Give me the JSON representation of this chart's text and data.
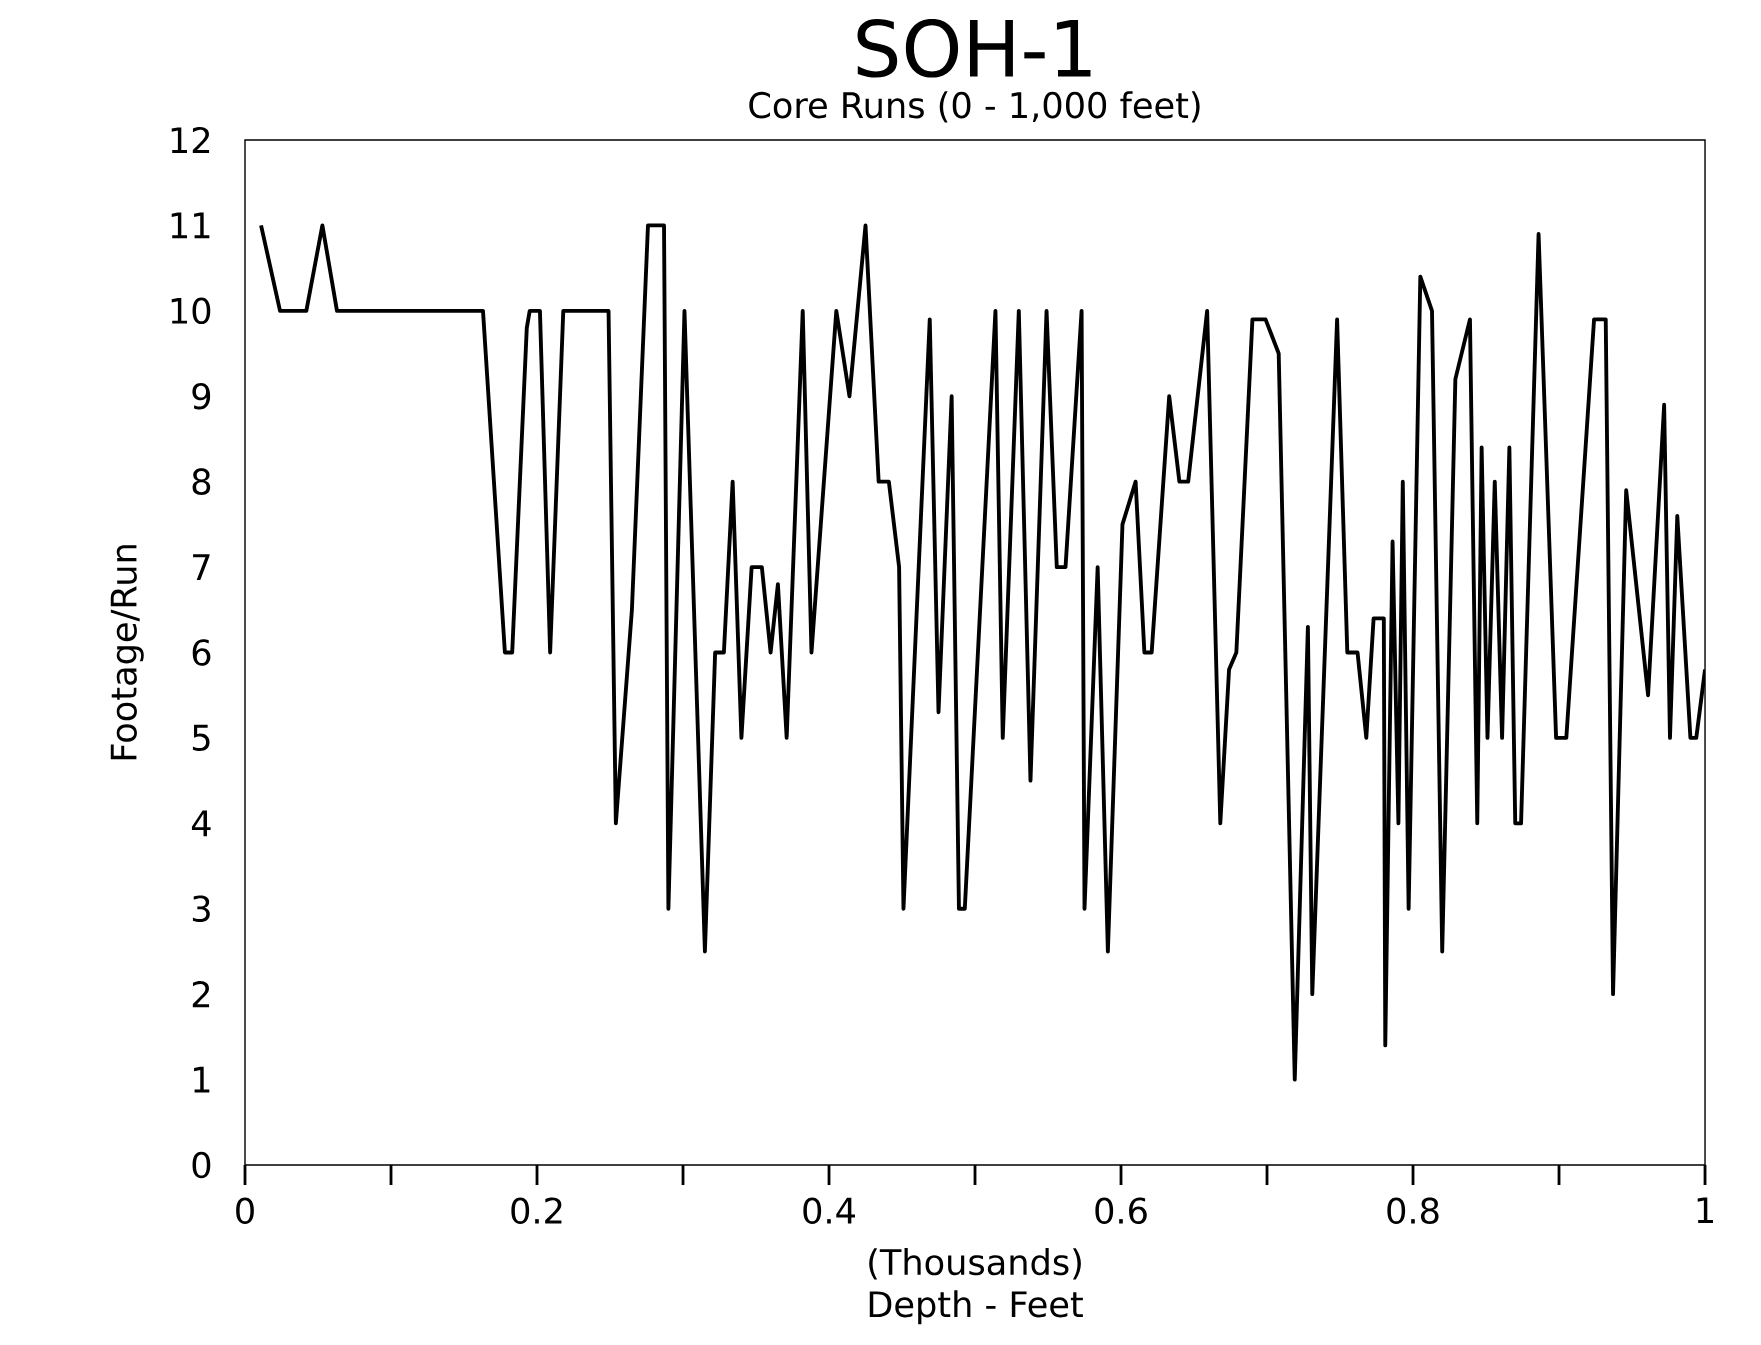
{
  "chart_data": {
    "type": "line",
    "title": "SOH-1",
    "subtitle": "Core Runs (0 - 1,000 feet)",
    "xlabel": "Depth - Feet",
    "ylabel": "Footage/Run",
    "annotations": [
      "(Thousands)"
    ],
    "x": [
      0.011,
      0.024,
      0.042,
      0.053,
      0.063,
      0.163,
      0.178,
      0.183,
      0.193,
      0.195,
      0.202,
      0.209,
      0.218,
      0.249,
      0.254,
      0.265,
      0.276,
      0.287,
      0.29,
      0.301,
      0.315,
      0.322,
      0.328,
      0.334,
      0.34,
      0.347,
      0.354,
      0.36,
      0.365,
      0.371,
      0.382,
      0.388,
      0.405,
      0.414,
      0.425,
      0.434,
      0.441,
      0.448,
      0.451,
      0.469,
      0.475,
      0.484,
      0.489,
      0.493,
      0.514,
      0.519,
      0.53,
      0.538,
      0.549,
      0.556,
      0.562,
      0.573,
      0.575,
      0.584,
      0.591,
      0.601,
      0.61,
      0.616,
      0.621,
      0.633,
      0.64,
      0.646,
      0.659,
      0.668,
      0.674,
      0.679,
      0.69,
      0.699,
      0.708,
      0.719,
      0.728,
      0.731,
      0.748,
      0.755,
      0.762,
      0.768,
      0.773,
      0.78,
      0.781,
      0.786,
      0.79,
      0.793,
      0.797,
      0.805,
      0.813,
      0.82,
      0.829,
      0.839,
      0.844,
      0.847,
      0.851,
      0.856,
      0.861,
      0.866,
      0.87,
      0.874,
      0.886,
      0.898,
      0.905,
      0.924,
      0.932,
      0.937,
      0.946,
      0.961,
      0.972,
      0.976,
      0.981,
      0.99,
      0.994,
      1.0
    ],
    "series": [
      {
        "color": "#000000",
        "values": [
          11,
          10,
          10,
          11,
          10,
          10,
          6,
          6,
          9.8,
          10,
          10,
          6,
          10,
          10,
          4,
          6.5,
          11,
          11,
          3,
          10,
          2.5,
          6,
          6,
          8,
          5,
          7,
          7,
          6,
          6.8,
          5,
          10,
          6,
          10,
          9,
          11,
          8,
          8,
          7,
          3,
          9.9,
          5.3,
          9,
          3,
          3,
          10,
          5,
          10,
          4.5,
          10,
          7,
          7,
          10,
          3,
          7,
          2.5,
          7.5,
          8,
          6,
          6,
          9,
          8,
          8,
          10,
          4,
          5.8,
          6,
          9.9,
          9.9,
          9.5,
          1,
          6.3,
          2,
          9.9,
          6,
          6,
          5,
          6.4,
          6.4,
          1.4,
          7.3,
          4,
          8,
          3,
          10.4,
          10,
          2.5,
          9.2,
          9.9,
          4,
          8.4,
          5,
          8,
          5,
          8.4,
          4,
          4,
          10.9,
          5,
          5,
          9.9,
          9.9,
          2,
          7.9,
          5.5,
          8.9,
          5,
          7.6,
          5,
          5,
          5.8
        ]
      }
    ],
    "xlim": [
      0,
      1
    ],
    "ylim": [
      0,
      12
    ],
    "xticks": [
      0,
      0.2,
      0.4,
      0.6,
      0.8,
      1
    ],
    "yticks": [
      0,
      1,
      2,
      3,
      4,
      5,
      6,
      7,
      8,
      9,
      10,
      11,
      12
    ]
  }
}
